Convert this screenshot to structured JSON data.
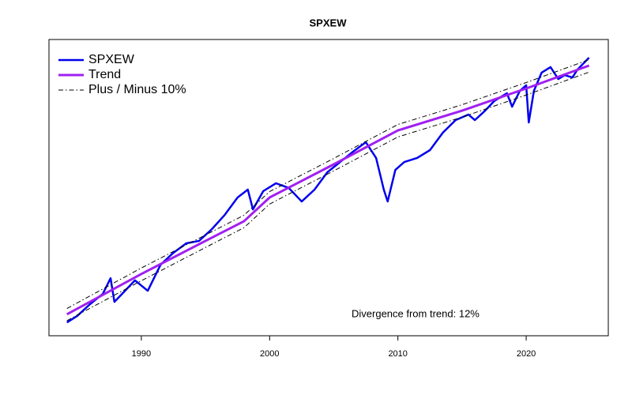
{
  "chart_data": {
    "type": "line",
    "title": "SPXEW",
    "annotation": "Divergence from trend: 12%",
    "log_y": true,
    "xlim": [
      1982.8,
      2026.4
    ],
    "xticks": [
      1990,
      2000,
      2010,
      2020
    ],
    "ylim": [
      80,
      9400
    ],
    "legend": "top-left",
    "series": [
      {
        "name": "SPXEW",
        "color": "#0000ee",
        "width": 2.5,
        "x": [
          1984.2,
          1985,
          1986,
          1987.0,
          1987.6,
          1987.9,
          1988.5,
          1989.5,
          1990.5,
          1991.5,
          1992.5,
          1993.5,
          1994.5,
          1995.5,
          1996.5,
          1997.5,
          1998.3,
          1998.7,
          1999.5,
          2000.5,
          2001.5,
          2002.5,
          2003.5,
          2004.5,
          2005.5,
          2006.5,
          2007.5,
          2008.3,
          2008.9,
          2009.2,
          2009.8,
          2010.5,
          2011.5,
          2012.5,
          2013.5,
          2014.5,
          2015.5,
          2016.0,
          2016.8,
          2017.5,
          2018.5,
          2018.9,
          2019.5,
          2020.0,
          2020.2,
          2020.6,
          2021.2,
          2021.9,
          2022.5,
          2023.0,
          2023.6,
          2024.0,
          2024.9
        ],
        "values": [
          99,
          110,
          133,
          157,
          202,
          138,
          157,
          195,
          165,
          251,
          304,
          354,
          368,
          445,
          559,
          740,
          840,
          611,
          819,
          930,
          862,
          694,
          840,
          1111,
          1310,
          1546,
          1801,
          1397,
          840,
          694,
          1154,
          1310,
          1397,
          1586,
          2097,
          2571,
          2809,
          2571,
          2993,
          3488,
          3960,
          3190,
          4113,
          4497,
          2473,
          4113,
          5512,
          6025,
          4976,
          5304,
          5104,
          5800,
          7016
        ]
      },
      {
        "name": "Trend",
        "color": "#a020f0",
        "width": 3,
        "x": [
          1984.2,
          1990,
          1995,
          1998,
          2000,
          2005,
          2010,
          2015,
          2020,
          2024.9
        ],
        "values": [
          113,
          216,
          368,
          505,
          740,
          1262,
          2177,
          2993,
          4275,
          6180
        ]
      },
      {
        "name": "Plus / Minus 10%",
        "color": "#000000",
        "width": 1,
        "dashed": true,
        "x": [
          1984.2,
          1990,
          1995,
          1998,
          2000,
          2005,
          2010,
          2015,
          2020,
          2024.9
        ],
        "values": [
          124,
          238,
          405,
          556,
          814,
          1388,
          2395,
          3292,
          4703,
          6798
        ]
      },
      {
        "color": "#000000",
        "width": 1,
        "dashed": true,
        "x": [
          1984.2,
          1990,
          1995,
          1998,
          2000,
          2005,
          2010,
          2015,
          2020,
          2024.9
        ],
        "values": [
          102,
          194,
          331,
          455,
          666,
          1136,
          1959,
          2694,
          3848,
          5562
        ]
      }
    ]
  }
}
